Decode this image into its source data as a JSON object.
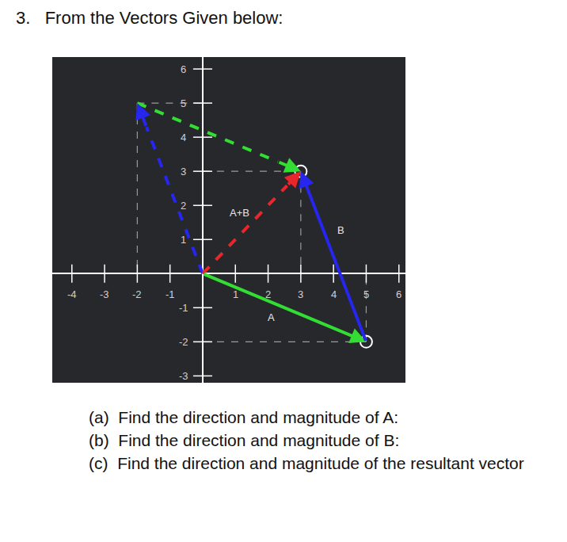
{
  "question": "3.   From the Vectors Given below:",
  "chart_data": {
    "type": "vector",
    "xlim": [
      -4.6,
      6.2
    ],
    "ylim": [
      -3.2,
      6.35
    ],
    "xticks": [
      -4,
      -3,
      -2,
      -1,
      1,
      2,
      3,
      4,
      5,
      6
    ],
    "yticks": [
      -3,
      -2,
      -1,
      1,
      2,
      3,
      4,
      5,
      6
    ],
    "vectors": [
      {
        "name": "A",
        "from": [
          0,
          0
        ],
        "to": [
          5,
          -2
        ],
        "color": "#33dd33",
        "line_style": "solid"
      },
      {
        "name": "B",
        "from": [
          5,
          -2
        ],
        "to": [
          3,
          3
        ],
        "color": "#2626f0",
        "line_style": "solid"
      },
      {
        "name": "A+B",
        "from": [
          0,
          0
        ],
        "to": [
          3,
          3
        ],
        "color": "#e8262b",
        "line_style": "dash"
      }
    ],
    "copies": [
      {
        "of": "A",
        "from": [
          -2,
          5
        ],
        "to": [
          3,
          3
        ],
        "line_style": "dash"
      },
      {
        "of": "B",
        "from": [
          0,
          0
        ],
        "to": [
          -2,
          5
        ],
        "line_style": "dash"
      }
    ],
    "guides": [
      [
        [
          -2,
          5
        ],
        [
          0,
          5
        ]
      ],
      [
        [
          -2,
          5
        ],
        [
          -2,
          0
        ]
      ],
      [
        [
          0,
          3
        ],
        [
          3,
          3
        ]
      ],
      [
        [
          3,
          3
        ],
        [
          3,
          0
        ]
      ],
      [
        [
          0,
          -2
        ],
        [
          5,
          -2
        ]
      ],
      [
        [
          5,
          -2
        ],
        [
          5,
          0
        ]
      ]
    ],
    "points": [
      [
        3,
        3
      ],
      [
        5,
        -2
      ]
    ]
  },
  "parts": [
    "(a)  Find the direction and magnitude of A:",
    "(b)  Find the direction and magnitude of B:",
    "(c)  Find the direction and magnitude of the resultant vector"
  ]
}
